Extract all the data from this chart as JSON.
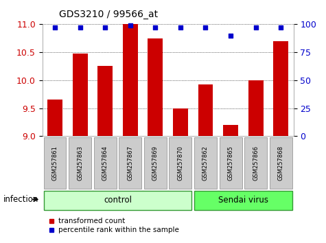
{
  "title": "GDS3210 / 99566_at",
  "samples": [
    "GSM257861",
    "GSM257863",
    "GSM257864",
    "GSM257867",
    "GSM257869",
    "GSM257870",
    "GSM257862",
    "GSM257865",
    "GSM257866",
    "GSM257868"
  ],
  "bar_values": [
    9.65,
    10.48,
    10.25,
    11.0,
    10.75,
    9.5,
    9.93,
    9.2,
    10.0,
    10.7
  ],
  "percentile_values": [
    97,
    97,
    97,
    99,
    97,
    97,
    97,
    90,
    97,
    97
  ],
  "bar_color": "#cc0000",
  "percentile_color": "#0000cc",
  "ylim": [
    9.0,
    11.0
  ],
  "yticks_left": [
    9.0,
    9.5,
    10.0,
    10.5,
    11.0
  ],
  "yticks_right": [
    0,
    25,
    50,
    75,
    100
  ],
  "groups": [
    {
      "label": "control",
      "start": 0,
      "end": 6,
      "color": "#ccffcc"
    },
    {
      "label": "Sendai virus",
      "start": 6,
      "end": 10,
      "color": "#66ff66"
    }
  ],
  "group_label": "infection",
  "legend_bar_label": "transformed count",
  "legend_pct_label": "percentile rank within the sample",
  "tick_label_color_left": "#cc0000",
  "tick_label_color_right": "#0000cc",
  "sample_label_bg": "#cccccc",
  "sample_border_color": "#888888",
  "group_border_color": "#339933"
}
